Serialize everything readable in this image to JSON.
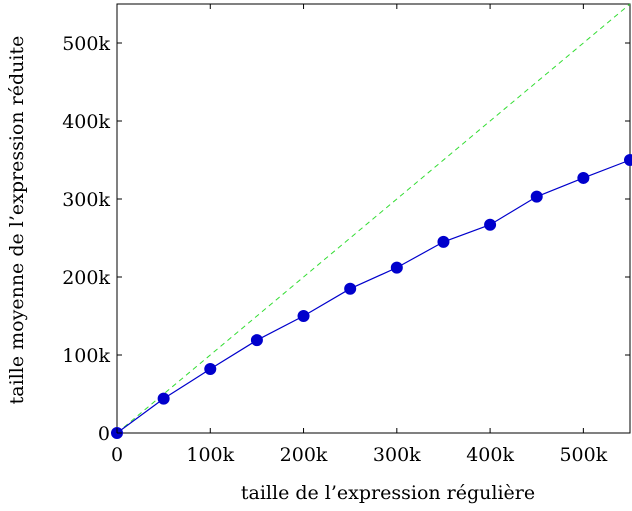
{
  "chart_data": {
    "type": "line",
    "xlabel": "taille de l’expression régulière",
    "ylabel": "taille moyenne de l’expression réduite",
    "xlim": [
      0,
      550000
    ],
    "ylim": [
      0,
      550000
    ],
    "x_ticks": [
      0,
      100000,
      200000,
      300000,
      400000,
      500000
    ],
    "x_tick_labels": [
      "0",
      "100k",
      "200k",
      "300k",
      "400k",
      "500k"
    ],
    "y_ticks": [
      0,
      100000,
      200000,
      300000,
      400000,
      500000
    ],
    "y_tick_labels": [
      "0",
      "100k",
      "200k",
      "300k",
      "400k",
      "500k"
    ],
    "grid": false,
    "series": [
      {
        "style": "solid line with circle markers",
        "color": "#0000cc",
        "x": [
          0,
          50000,
          100000,
          150000,
          200000,
          250000,
          300000,
          350000,
          400000,
          450000,
          500000,
          550000
        ],
        "y": [
          0,
          44000,
          82000,
          119000,
          150000,
          185000,
          212000,
          245000,
          267000,
          303000,
          327000,
          350000
        ]
      },
      {
        "style": "dashed line",
        "color": "#33dd33",
        "x": [
          0,
          550000
        ],
        "y": [
          0,
          550000
        ]
      }
    ]
  }
}
